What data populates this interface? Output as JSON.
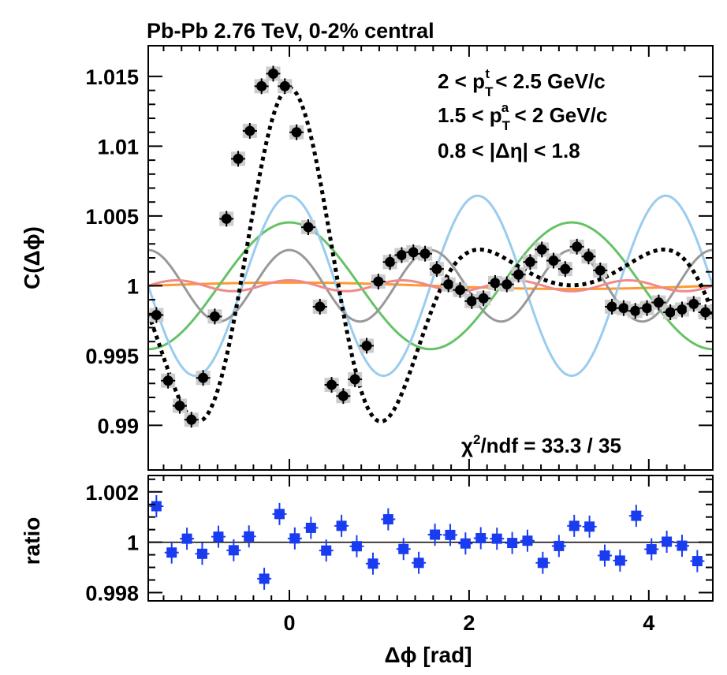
{
  "chart_data": [
    {
      "type": "scatter",
      "title": "Pb-Pb 2.76 TeV, 0-2% central",
      "ylabel": "C(Δϕ)",
      "xlim": [
        -1.5708,
        4.7124
      ],
      "ylim": [
        0.9868,
        1.0172
      ],
      "yticks": [
        "0.99",
        "0.995",
        "1",
        "1.005",
        "1.01",
        "1.015"
      ],
      "annotations": [
        "2 < p",
        "T",
        "t",
        " < 2.5 GeV/c",
        "1.5 < p",
        "T",
        "a",
        " < 2 GeV/c",
        "0.8 < |Δη| < 1.8",
        "χ",
        "2",
        "/ndf = 33.3 / 35"
      ],
      "fit_chi2": "33.3",
      "fit_ndf": "35",
      "harmonics": [
        {
          "n": 1,
          "amplitude": 0.00023,
          "color": "#ff9933"
        },
        {
          "n": 2,
          "amplitude": 0.00454,
          "color": "#66c266"
        },
        {
          "n": 3,
          "amplitude": 0.00645,
          "color": "#99ccee"
        },
        {
          "n": 4,
          "amplitude": 0.00256,
          "color": "#999999"
        },
        {
          "n": 5,
          "amplitude": 0.00039,
          "color": "#f08a8a"
        }
      ],
      "series": [
        {
          "marker": "circle",
          "color": "#000000",
          "x": [
            -1.48,
            -1.35,
            -1.22,
            -1.09,
            -0.96,
            -0.83,
            -0.7,
            -0.57,
            -0.44,
            -0.31,
            -0.18,
            -0.05,
            0.08,
            0.21,
            0.34,
            0.47,
            0.6,
            0.73,
            0.86,
            0.99,
            1.12,
            1.25,
            1.38,
            1.51,
            1.64,
            1.77,
            1.9,
            2.03,
            2.16,
            2.29,
            2.42,
            2.55,
            2.68,
            2.81,
            2.94,
            3.07,
            3.2,
            3.33,
            3.46,
            3.59,
            3.72,
            3.85,
            3.98,
            4.11,
            4.24,
            4.37,
            4.5,
            4.63
          ],
          "y": [
            0.9979,
            0.9932,
            0.9914,
            0.9904,
            0.9934,
            0.9978,
            1.0048,
            1.0091,
            1.0111,
            1.0143,
            1.0152,
            1.0143,
            1.011,
            1.0042,
            0.9985,
            0.9929,
            0.9921,
            0.9933,
            0.9957,
            1.0003,
            1.0017,
            1.0022,
            1.0024,
            1.0023,
            1.0012,
            1.0001,
            0.9997,
            0.9989,
            0.9991,
            1.0002,
            1.0001,
            1.0008,
            1.0017,
            1.0026,
            1.0018,
            1.0012,
            1.0028,
            1.0021,
            1.0011,
            0.9985,
            0.9984,
            0.9982,
            0.9984,
            0.9988,
            0.9981,
            0.9983,
            0.9987,
            0.9981
          ]
        }
      ]
    },
    {
      "type": "scatter",
      "xlabel": "Δϕ [rad]",
      "ylabel": "ratio",
      "xlim": [
        -1.5708,
        4.7124
      ],
      "ylim": [
        0.99767,
        1.00265
      ],
      "xticks": [
        "0",
        "2",
        "4"
      ],
      "yticks": [
        "0.998",
        "1",
        "1.002"
      ],
      "reference_line": 1,
      "series": [
        {
          "marker": "square",
          "color": "#1a3cf0",
          "x": [
            -1.48,
            -1.31,
            -1.14,
            -0.97,
            -0.79,
            -0.62,
            -0.45,
            -0.28,
            -0.11,
            0.06,
            0.24,
            0.41,
            0.58,
            0.75,
            0.93,
            1.1,
            1.27,
            1.44,
            1.62,
            1.79,
            1.96,
            2.13,
            2.31,
            2.48,
            2.65,
            2.82,
            3.0,
            3.17,
            3.34,
            3.51,
            3.68,
            3.86,
            4.03,
            4.2,
            4.37,
            4.54
          ],
          "y": [
            1.00143,
            0.99959,
            1.00014,
            0.99954,
            1.00022,
            0.99968,
            1.00023,
            0.99855,
            1.00112,
            1.00015,
            1.00057,
            0.99967,
            1.00065,
            0.99984,
            0.99915,
            1.00091,
            0.99973,
            0.99918,
            1.0003,
            1.00029,
            0.99995,
            1.00016,
            1.00014,
            0.99997,
            1.00006,
            0.99918,
            0.99985,
            1.00065,
            1.00062,
            0.99947,
            0.99927,
            1.00105,
            0.99972,
            1.00002,
            0.99986,
            0.99925
          ]
        }
      ]
    }
  ]
}
